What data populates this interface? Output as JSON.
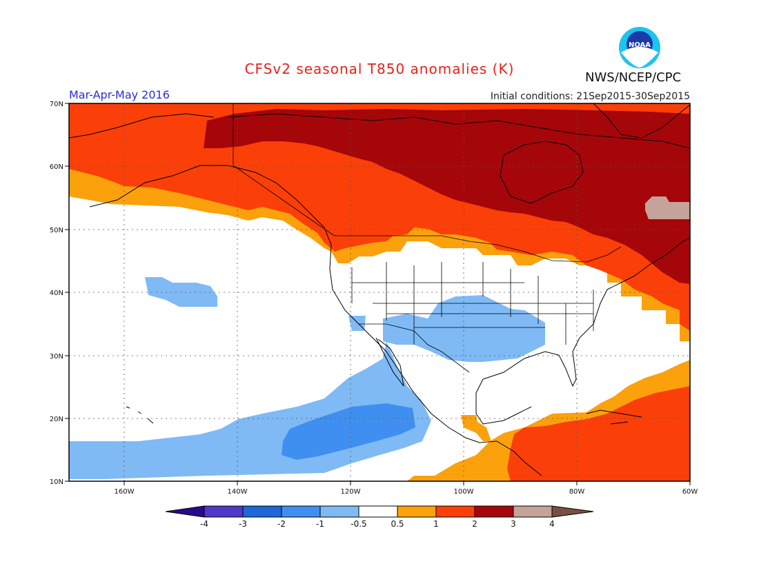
{
  "title": "CFSv2 seasonal T850 anomalies (K)",
  "season": "Mar-Apr-May 2016",
  "initial_conditions": "Initial conditions: 21Sep2015-30Sep2015",
  "agency": "NWS/NCEP/CPC",
  "logo_text": "NOAA",
  "map": {
    "lon_labels": [
      "160W",
      "140W",
      "120W",
      "100W",
      "80W",
      "60W"
    ],
    "lat_labels": [
      "70N",
      "60N",
      "50N",
      "40N",
      "30N",
      "20N",
      "10N"
    ]
  },
  "colorbar": {
    "labels": [
      "-4",
      "-3",
      "-2",
      "-1",
      "-0.5",
      "0.5",
      "1",
      "2",
      "3",
      "4"
    ],
    "colors": {
      "lt_neg4": "#2a0a8a",
      "neg4_neg3": "#5038c8",
      "neg3_neg2": "#1f66d6",
      "neg2_neg1": "#3f8ff0",
      "neg1_neg05": "#7fbaf5",
      "neutral": "#ffffff",
      "p05_1": "#fba10c",
      "p1_2": "#fb3f08",
      "p2_3": "#a5060a",
      "p3_4": "#c4a39a",
      "gt_4": "#7a4f42"
    }
  }
}
